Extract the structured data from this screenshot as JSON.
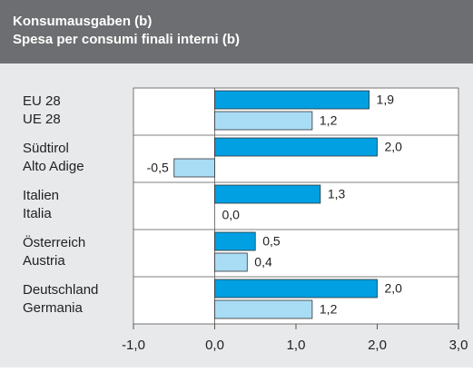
{
  "chart_data": {
    "type": "hbar",
    "title": "Konsumausgaben (b)",
    "subtitle": "Spesa per consumi finali interni (b)",
    "categories": [
      [
        "EU 28",
        "UE 28"
      ],
      [
        "Südtirol",
        "Alto Adige"
      ],
      [
        "Italien",
        "Italia"
      ],
      [
        "Österreich",
        "Austria"
      ],
      [
        "Deutschland",
        "Germania"
      ]
    ],
    "series": [
      {
        "color": "#00a0e3",
        "values": [
          1.9,
          2.0,
          1.3,
          0.5,
          2.0
        ],
        "value_labels": [
          "1,9",
          "2,0",
          "1,3",
          "0,5",
          "2,0"
        ]
      },
      {
        "color": "#a9dcf5",
        "values": [
          1.2,
          -0.5,
          0.0,
          0.4,
          1.2
        ],
        "value_labels": [
          "1,2",
          "-0,5",
          "0,0",
          "0,4",
          "1,2"
        ]
      }
    ],
    "xlim": [
      -1,
      3
    ],
    "xticks": [
      {
        "value": -1,
        "label": "-1,0"
      },
      {
        "value": 0,
        "label": "0,0"
      },
      {
        "value": 1,
        "label": "1,0"
      },
      {
        "value": 2,
        "label": "2,0"
      },
      {
        "value": 3,
        "label": "3,0"
      }
    ]
  }
}
